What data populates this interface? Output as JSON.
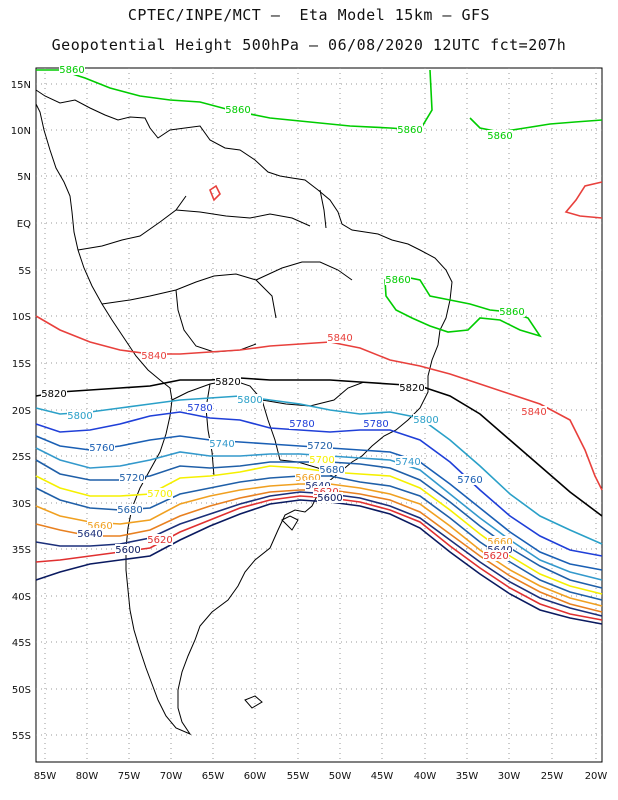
{
  "header": {
    "line1": "CPTEC/INPE/MCT –  Eta Model 15km – GFS",
    "line2": "Geopotential Height 500hPa – 06/08/2020 12UTC fct=207h"
  },
  "axes": {
    "lat_labels": [
      "15N",
      "10N",
      "5N",
      "EQ",
      "5S",
      "10S",
      "15S",
      "20S",
      "25S",
      "30S",
      "35S",
      "40S",
      "45S",
      "50S",
      "55S"
    ],
    "lon_labels": [
      "85W",
      "80W",
      "75W",
      "70W",
      "65W",
      "60W",
      "55W",
      "50W",
      "45W",
      "40W",
      "35W",
      "30W",
      "25W",
      "20W"
    ],
    "grid": "dotted"
  },
  "colors": {
    "c5860": "#00cc00",
    "c5840": "#e8403c",
    "c5820": "#000000",
    "c5800": "#2aa0c8",
    "c5780": "#1f3fd8",
    "c5760": "#1a5fb4",
    "c5740": "#3399cc",
    "c5720": "#1f5fa8",
    "c5700": "#f5f000",
    "c5680": "#f0a020",
    "c5660": "#e88020",
    "c5640": "#1b2f7a",
    "c5620": "#e03030",
    "c5600": "#0a1a60"
  },
  "contour_labels": [
    {
      "text": "5860",
      "color": "c5860"
    },
    {
      "text": "5860",
      "color": "c5860"
    },
    {
      "text": "5860",
      "color": "c5860"
    },
    {
      "text": "5860",
      "color": "c5860"
    },
    {
      "text": "5860",
      "color": "c5860"
    },
    {
      "text": "5860",
      "color": "c5860"
    },
    {
      "text": "5840",
      "color": "c5840"
    },
    {
      "text": "5840",
      "color": "c5840"
    },
    {
      "text": "5840",
      "color": "c5840"
    },
    {
      "text": "5820",
      "color": "c5820"
    },
    {
      "text": "5820",
      "color": "c5820"
    },
    {
      "text": "5820",
      "color": "c5820"
    },
    {
      "text": "5800",
      "color": "c5800"
    },
    {
      "text": "5800",
      "color": "c5800"
    },
    {
      "text": "5800",
      "color": "c5800"
    },
    {
      "text": "5780",
      "color": "c5780"
    },
    {
      "text": "5780",
      "color": "c5780"
    },
    {
      "text": "5780",
      "color": "c5780"
    },
    {
      "text": "5760",
      "color": "c5760"
    },
    {
      "text": "5760",
      "color": "c5760"
    },
    {
      "text": "5740",
      "color": "c5740"
    },
    {
      "text": "5740",
      "color": "c5740"
    },
    {
      "text": "5720",
      "color": "c5720"
    },
    {
      "text": "5720",
      "color": "c5720"
    },
    {
      "text": "5700",
      "color": "c5700"
    },
    {
      "text": "5700",
      "color": "c5700"
    },
    {
      "text": "5680",
      "color": "c5720"
    },
    {
      "text": "5680",
      "color": "c5720"
    },
    {
      "text": "5660",
      "color": "c5680"
    },
    {
      "text": "5660",
      "color": "c5680"
    },
    {
      "text": "5660",
      "color": "c5680"
    },
    {
      "text": "5640",
      "color": "c5640"
    },
    {
      "text": "5640",
      "color": "c5640"
    },
    {
      "text": "5640",
      "color": "c5640"
    },
    {
      "text": "5620",
      "color": "c5620"
    },
    {
      "text": "5620",
      "color": "c5620"
    },
    {
      "text": "5620",
      "color": "c5620"
    },
    {
      "text": "5600",
      "color": "c5600"
    },
    {
      "text": "5600",
      "color": "c5600"
    }
  ]
}
